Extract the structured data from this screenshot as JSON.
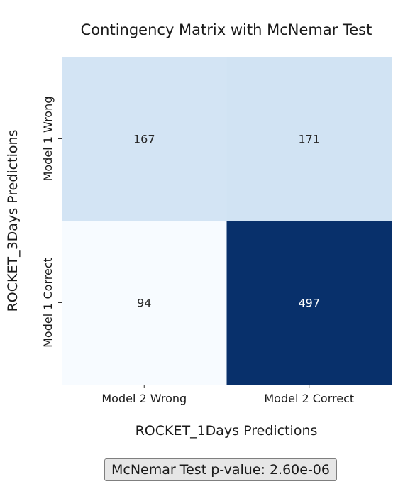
{
  "chart_data": {
    "type": "heatmap",
    "title": "Contingency Matrix with McNemar Test",
    "xlabel": "ROCKET_1Days Predictions",
    "ylabel": "ROCKET_3Days Predictions",
    "x_categories": [
      "Model 2 Wrong",
      "Model 2 Correct"
    ],
    "y_categories": [
      "Model 1 Wrong",
      "Model 1 Correct"
    ],
    "values": [
      [
        167,
        171
      ],
      [
        94,
        497
      ]
    ],
    "colormap": "Blues",
    "colors": {
      "low": "#f7fbff",
      "mid": "#d1e3f3",
      "high": "#08306b",
      "dark_text": "#262626",
      "light_text": "#ffffff"
    },
    "annotation": "McNemar Test p-value: 2.60e-06"
  }
}
